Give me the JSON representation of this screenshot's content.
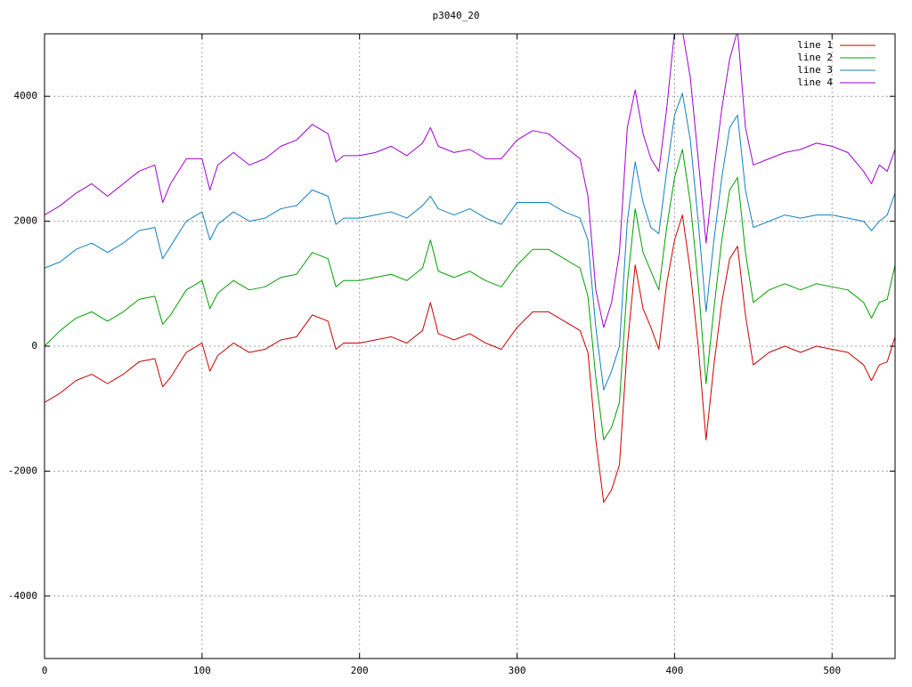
{
  "chart_data": {
    "type": "line",
    "title": "p3040_20",
    "xlim": [
      0,
      540
    ],
    "ylim": [
      -5000,
      5000
    ],
    "xticks": [
      0,
      100,
      200,
      300,
      400,
      500
    ],
    "yticks": [
      -4000,
      -2000,
      0,
      2000,
      4000
    ],
    "grid": true,
    "legend": "top-right",
    "x": [
      0,
      10,
      20,
      30,
      40,
      50,
      60,
      70,
      75,
      80,
      90,
      100,
      105,
      110,
      120,
      130,
      140,
      150,
      160,
      170,
      180,
      185,
      190,
      200,
      210,
      220,
      230,
      240,
      245,
      250,
      260,
      270,
      280,
      290,
      300,
      310,
      320,
      330,
      340,
      345,
      350,
      355,
      360,
      365,
      370,
      375,
      380,
      385,
      390,
      395,
      400,
      405,
      410,
      415,
      420,
      425,
      430,
      435,
      440,
      445,
      450,
      460,
      470,
      480,
      490,
      500,
      510,
      520,
      525,
      530,
      535,
      540
    ],
    "series": [
      {
        "name": "line 1",
        "color": "#cc0000",
        "values": [
          -900,
          -750,
          -550,
          -450,
          -600,
          -450,
          -250,
          -200,
          -650,
          -500,
          -100,
          50,
          -400,
          -150,
          50,
          -100,
          -50,
          100,
          150,
          500,
          400,
          -50,
          50,
          50,
          100,
          150,
          50,
          250,
          700,
          200,
          100,
          200,
          50,
          -50,
          300,
          550,
          550,
          400,
          250,
          -100,
          -1500,
          -2500,
          -2300,
          -1900,
          0,
          1300,
          600,
          300,
          -50,
          1000,
          1700,
          2100,
          1200,
          0,
          -1500,
          -300,
          700,
          1400,
          1600,
          500,
          -300,
          -100,
          0,
          -100,
          0,
          -50,
          -100,
          -300,
          -550,
          -300,
          -250,
          150
        ]
      },
      {
        "name": "line 2",
        "color": "#00a000",
        "values": [
          0,
          250,
          450,
          550,
          400,
          550,
          750,
          800,
          350,
          500,
          900,
          1050,
          600,
          850,
          1050,
          900,
          950,
          1100,
          1150,
          1500,
          1400,
          950,
          1050,
          1050,
          1100,
          1150,
          1050,
          1250,
          1700,
          1200,
          1100,
          1200,
          1050,
          950,
          1300,
          1550,
          1550,
          1400,
          1250,
          800,
          -500,
          -1500,
          -1300,
          -900,
          1000,
          2200,
          1500,
          1200,
          900,
          1900,
          2700,
          3150,
          2300,
          1000,
          -600,
          600,
          1700,
          2500,
          2700,
          1500,
          700,
          900,
          1000,
          900,
          1000,
          950,
          900,
          700,
          450,
          700,
          750,
          1300
        ]
      },
      {
        "name": "line 3",
        "color": "#1080c0",
        "values": [
          1250,
          1350,
          1550,
          1650,
          1500,
          1650,
          1850,
          1900,
          1400,
          1600,
          2000,
          2150,
          1700,
          1950,
          2150,
          2000,
          2050,
          2200,
          2250,
          2500,
          2400,
          1950,
          2050,
          2050,
          2100,
          2150,
          2050,
          2250,
          2400,
          2200,
          2100,
          2200,
          2050,
          1950,
          2300,
          2300,
          2300,
          2150,
          2050,
          1700,
          300,
          -700,
          -400,
          0,
          2000,
          2950,
          2300,
          1900,
          1800,
          2800,
          3700,
          4050,
          3300,
          2000,
          550,
          1700,
          2700,
          3500,
          3700,
          2500,
          1900,
          2000,
          2100,
          2050,
          2100,
          2100,
          2050,
          2000,
          1850,
          2000,
          2100,
          2450
        ]
      },
      {
        "name": "line 4",
        "color": "#a000d0",
        "values": [
          2100,
          2250,
          2450,
          2600,
          2400,
          2600,
          2800,
          2900,
          2300,
          2600,
          3000,
          3000,
          2500,
          2900,
          3100,
          2900,
          3000,
          3200,
          3300,
          3550,
          3400,
          2950,
          3050,
          3050,
          3100,
          3200,
          3050,
          3250,
          3500,
          3200,
          3100,
          3150,
          3000,
          3000,
          3300,
          3450,
          3400,
          3200,
          3000,
          2400,
          900,
          300,
          700,
          1500,
          3500,
          4100,
          3400,
          3000,
          2800,
          3800,
          5050,
          5050,
          4300,
          3000,
          1650,
          2800,
          3800,
          4600,
          5050,
          3500,
          2900,
          3000,
          3100,
          3150,
          3250,
          3200,
          3100,
          2800,
          2600,
          2900,
          2800,
          3150
        ]
      }
    ]
  }
}
